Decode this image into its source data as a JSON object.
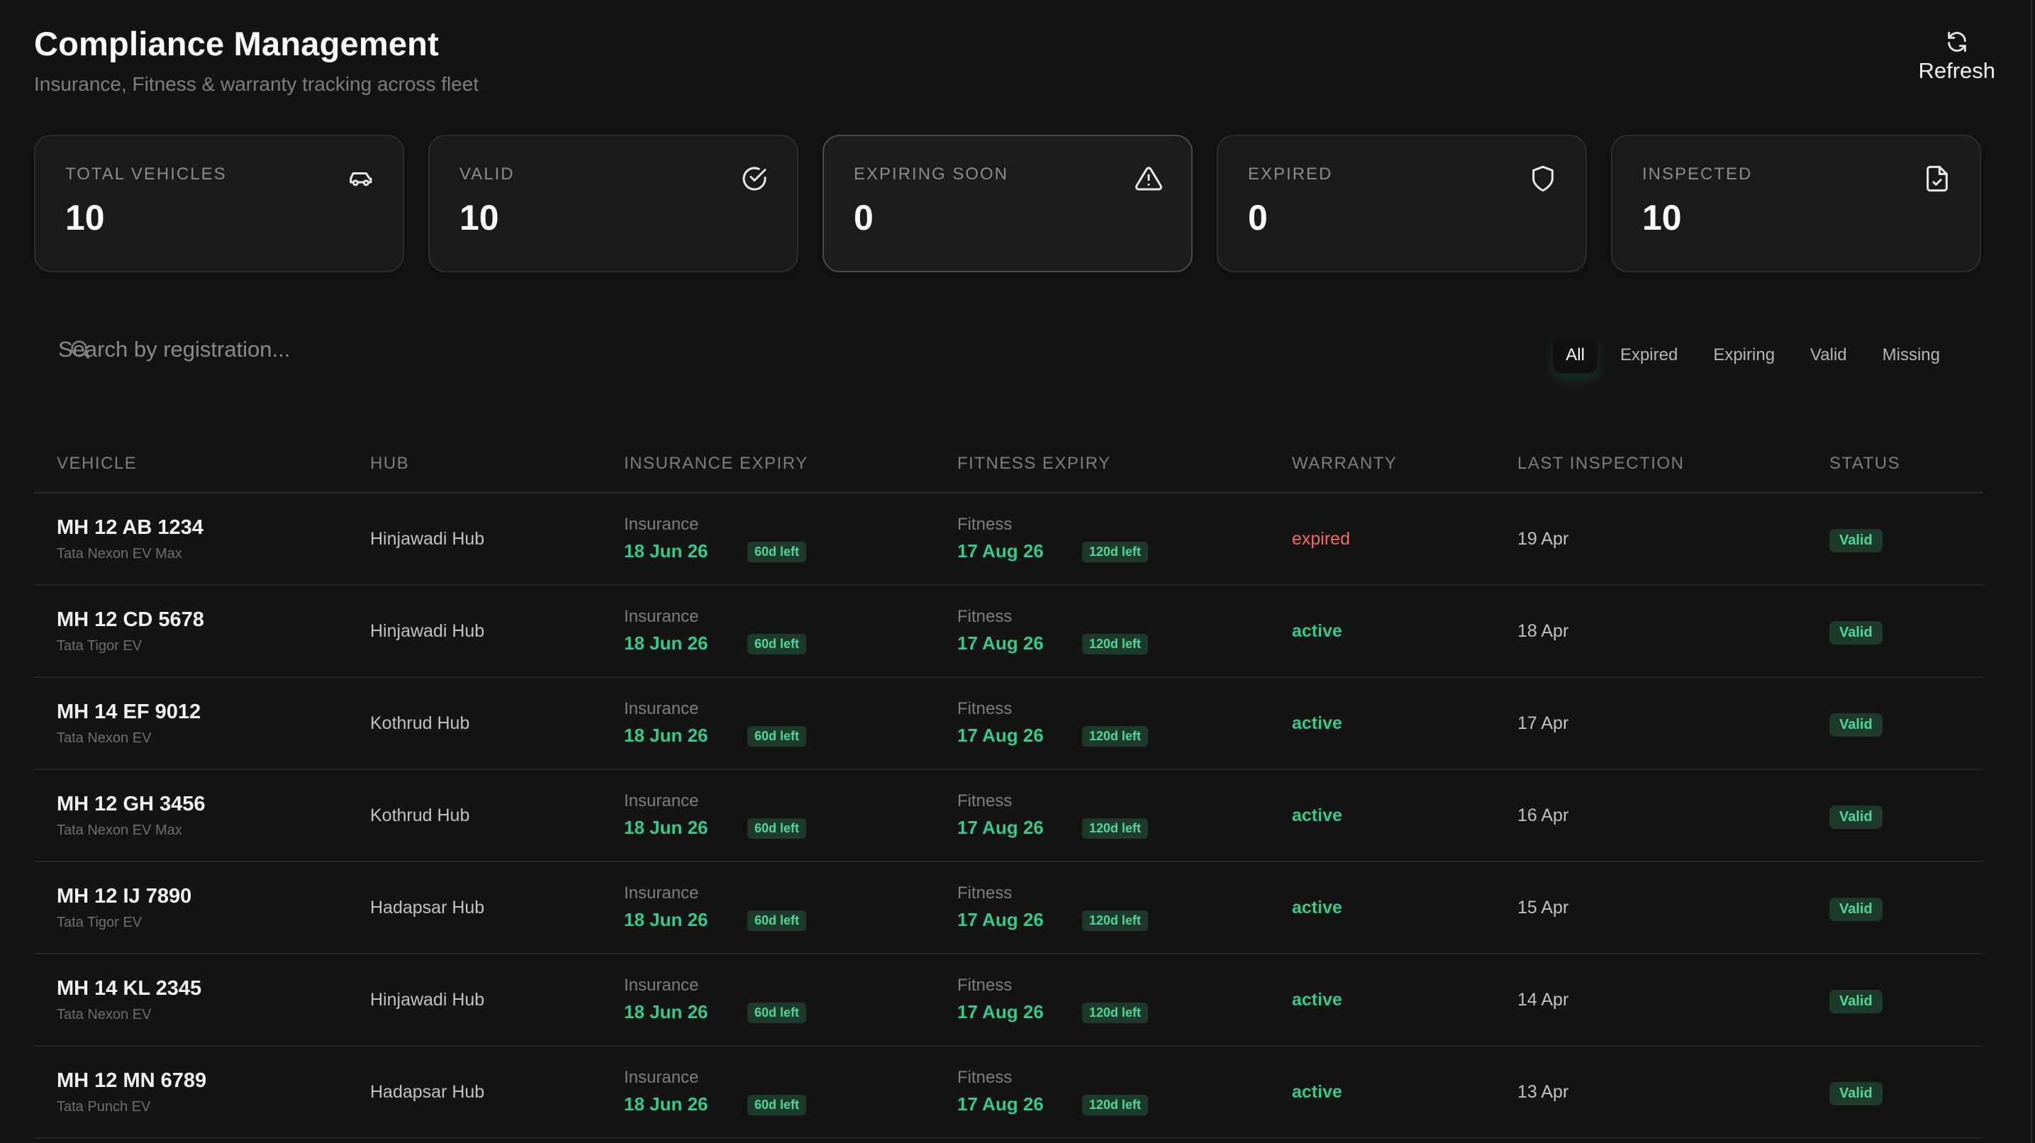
{
  "header": {
    "title": "Compliance Management",
    "subtitle": "Insurance, Fitness & warranty tracking across fleet",
    "refresh_label": "Refresh"
  },
  "cards": [
    {
      "label": "TOTAL VEHICLES",
      "value": "10",
      "icon": "car-icon"
    },
    {
      "label": "VALID",
      "value": "10",
      "icon": "check-circle-icon"
    },
    {
      "label": "EXPIRING SOON",
      "value": "0",
      "icon": "warning-triangle-icon"
    },
    {
      "label": "EXPIRED",
      "value": "0",
      "icon": "shield-icon"
    },
    {
      "label": "INSPECTED",
      "value": "10",
      "icon": "file-check-icon"
    }
  ],
  "search": {
    "placeholder": "Search by registration..."
  },
  "filters": [
    {
      "label": "All",
      "active": true
    },
    {
      "label": "Expired",
      "active": false
    },
    {
      "label": "Expiring",
      "active": false
    },
    {
      "label": "Valid",
      "active": false
    },
    {
      "label": "Missing",
      "active": false
    }
  ],
  "table": {
    "columns": [
      "VEHICLE",
      "HUB",
      "INSURANCE EXPIRY",
      "FITNESS EXPIRY",
      "WARRANTY",
      "LAST INSPECTION",
      "STATUS"
    ],
    "rows": [
      {
        "reg": "MH 12 AB 1234",
        "model": "Tata Nexon EV Max",
        "hub": "Hinjawadi Hub",
        "ins_label": "Insurance",
        "ins_date": "18 Jun 26",
        "ins_left": "60d left",
        "fit_label": "Fitness",
        "fit_date": "17 Aug 26",
        "fit_left": "120d left",
        "warranty": "expired",
        "inspection": "19 Apr",
        "status": "Valid"
      },
      {
        "reg": "MH 12 CD 5678",
        "model": "Tata Tigor EV",
        "hub": "Hinjawadi Hub",
        "ins_label": "Insurance",
        "ins_date": "18 Jun 26",
        "ins_left": "60d left",
        "fit_label": "Fitness",
        "fit_date": "17 Aug 26",
        "fit_left": "120d left",
        "warranty": "active",
        "inspection": "18 Apr",
        "status": "Valid"
      },
      {
        "reg": "MH 14 EF 9012",
        "model": "Tata Nexon EV",
        "hub": "Kothrud Hub",
        "ins_label": "Insurance",
        "ins_date": "18 Jun 26",
        "ins_left": "60d left",
        "fit_label": "Fitness",
        "fit_date": "17 Aug 26",
        "fit_left": "120d left",
        "warranty": "active",
        "inspection": "17 Apr",
        "status": "Valid"
      },
      {
        "reg": "MH 12 GH 3456",
        "model": "Tata Nexon EV Max",
        "hub": "Kothrud Hub",
        "ins_label": "Insurance",
        "ins_date": "18 Jun 26",
        "ins_left": "60d left",
        "fit_label": "Fitness",
        "fit_date": "17 Aug 26",
        "fit_left": "120d left",
        "warranty": "active",
        "inspection": "16 Apr",
        "status": "Valid"
      },
      {
        "reg": "MH 12 IJ 7890",
        "model": "Tata Tigor EV",
        "hub": "Hadapsar Hub",
        "ins_label": "Insurance",
        "ins_date": "18 Jun 26",
        "ins_left": "60d left",
        "fit_label": "Fitness",
        "fit_date": "17 Aug 26",
        "fit_left": "120d left",
        "warranty": "active",
        "inspection": "15 Apr",
        "status": "Valid"
      },
      {
        "reg": "MH 14 KL 2345",
        "model": "Tata Nexon EV",
        "hub": "Hinjawadi Hub",
        "ins_label": "Insurance",
        "ins_date": "18 Jun 26",
        "ins_left": "60d left",
        "fit_label": "Fitness",
        "fit_date": "17 Aug 26",
        "fit_left": "120d left",
        "warranty": "active",
        "inspection": "14 Apr",
        "status": "Valid"
      },
      {
        "reg": "MH 12 MN 6789",
        "model": "Tata Punch EV",
        "hub": "Hadapsar Hub",
        "ins_label": "Insurance",
        "ins_date": "18 Jun 26",
        "ins_left": "60d left",
        "fit_label": "Fitness",
        "fit_date": "17 Aug 26",
        "fit_left": "120d left",
        "warranty": "active",
        "inspection": "13 Apr",
        "status": "Valid"
      }
    ]
  }
}
